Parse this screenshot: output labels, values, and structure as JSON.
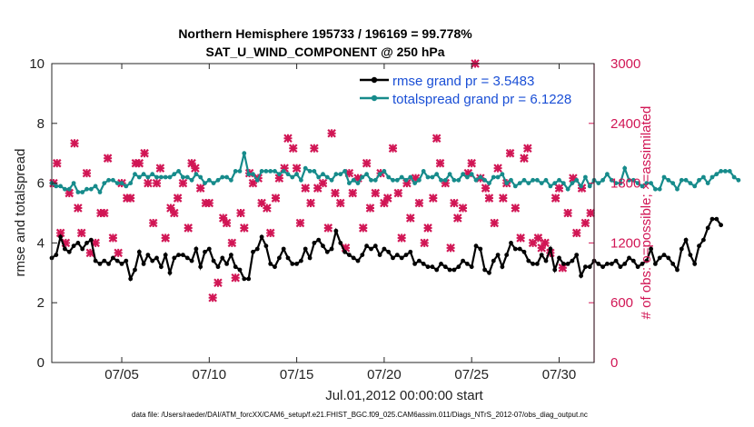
{
  "chart_data": {
    "type": "line",
    "title": "Northern Hemisphere 195733 / 196169 = 99.778%",
    "subtitle": "SAT_U_WIND_COMPONENT @ 250 hPa",
    "xlabel": "Jul.01,2012 00:00:00 start",
    "ylabel": "rmse and totalspread",
    "ylabel_right": "# of obs: o=possible; ×=assimilated",
    "xlim": [
      1,
      32
    ],
    "ylim": [
      0,
      10
    ],
    "ylim_right": [
      0,
      3000
    ],
    "x_ticks": [
      5,
      10,
      15,
      20,
      25,
      30
    ],
    "x_tick_labels": [
      "07/05",
      "07/10",
      "07/15",
      "07/20",
      "07/25",
      "07/30"
    ],
    "y_ticks": [
      0,
      2,
      4,
      6,
      8,
      10
    ],
    "y_tick_labels": [
      "0",
      "2",
      "4",
      "6",
      "8",
      "10"
    ],
    "y_ticks_right": [
      0,
      600,
      1200,
      1800,
      2400,
      3000
    ],
    "y_tick_labels_right": [
      "0",
      "600",
      "1200",
      "1800",
      "2400",
      "3000"
    ],
    "legend_position": "top-right",
    "series": [
      {
        "name": "rmse grand pr = 3.5483",
        "color": "#000000",
        "step": 0.25,
        "start": 1.0,
        "values": [
          3.5,
          3.6,
          4.2,
          3.8,
          3.7,
          3.9,
          4.0,
          3.8,
          4.0,
          4.1,
          3.4,
          3.3,
          3.4,
          3.3,
          3.5,
          3.4,
          3.3,
          3.4,
          2.8,
          3.1,
          3.7,
          3.3,
          3.6,
          3.4,
          3.5,
          3.2,
          3.6,
          3.0,
          3.5,
          3.6,
          3.6,
          3.5,
          3.4,
          3.8,
          3.2,
          3.7,
          3.8,
          3.4,
          3.2,
          3.5,
          3.3,
          3.6,
          3.2,
          3.1,
          2.8,
          2.8,
          3.7,
          3.8,
          4.2,
          3.9,
          3.3,
          3.2,
          3.5,
          3.8,
          3.5,
          3.3,
          3.3,
          3.4,
          3.8,
          3.5,
          4.0,
          4.1,
          3.9,
          3.7,
          3.8,
          4.4,
          4.0,
          3.7,
          3.6,
          3.5,
          3.4,
          3.6,
          3.9,
          3.8,
          3.9,
          3.6,
          3.8,
          3.7,
          3.5,
          3.6,
          3.5,
          3.6,
          3.7,
          3.3,
          3.4,
          3.3,
          3.2,
          3.2,
          3.1,
          3.3,
          3.2,
          3.1,
          3.1,
          3.2,
          3.4,
          3.3,
          3.2,
          3.9,
          3.8,
          3.1,
          3.0,
          3.4,
          3.6,
          3.2,
          3.6,
          4.0,
          3.8,
          3.8,
          3.7,
          3.4,
          3.3,
          3.3,
          3.6,
          3.4,
          3.8,
          3.1,
          3.5,
          3.3,
          3.3,
          3.4,
          3.6,
          2.9,
          3.2,
          3.2,
          3.4,
          3.3,
          3.2,
          3.3,
          3.3,
          3.4,
          3.2,
          3.3,
          3.5,
          3.4,
          3.2,
          3.3,
          3.4,
          3.8,
          3.3,
          3.5,
          3.6,
          3.5,
          3.3,
          3.1,
          3.8,
          4.1,
          3.6,
          3.3,
          3.9,
          4.1,
          4.5,
          4.8,
          4.8,
          4.6
        ]
      },
      {
        "name": "totalspread grand pr = 6.1228",
        "color": "#168b8b",
        "step": 0.25,
        "start": 1.0,
        "values": [
          6.0,
          5.9,
          5.9,
          5.8,
          5.8,
          6.0,
          5.7,
          5.7,
          5.8,
          5.8,
          5.9,
          5.7,
          6.0,
          6.1,
          6.1,
          6.0,
          6.0,
          5.9,
          6.0,
          6.3,
          6.2,
          6.3,
          6.2,
          6.3,
          6.2,
          6.2,
          6.2,
          6.2,
          6.3,
          6.4,
          6.2,
          6.2,
          6.1,
          6.3,
          6.2,
          6.0,
          6.1,
          6.0,
          6.1,
          6.2,
          6.2,
          6.1,
          6.4,
          6.4,
          7.0,
          6.3,
          6.3,
          6.1,
          6.4,
          6.4,
          6.4,
          6.4,
          6.3,
          6.4,
          6.3,
          6.2,
          6.3,
          6.1,
          6.5,
          6.4,
          6.4,
          6.2,
          6.3,
          6.2,
          6.1,
          6.3,
          6.3,
          6.4,
          6.0,
          6.1,
          6.0,
          6.2,
          6.3,
          6.1,
          6.1,
          6.3,
          6.4,
          6.2,
          6.1,
          6.1,
          6.2,
          6.1,
          6.2,
          6.0,
          6.1,
          6.4,
          6.2,
          6.2,
          6.3,
          6.1,
          6.1,
          6.3,
          6.1,
          6.1,
          6.3,
          6.2,
          6.3,
          6.1,
          6.2,
          6.1,
          6.0,
          6.2,
          6.2,
          6.3,
          6.0,
          6.1,
          5.9,
          6.0,
          6.1,
          6.0,
          6.1,
          6.1,
          6.0,
          6.1,
          5.9,
          6.0,
          6.1,
          6.0,
          5.8,
          6.0,
          6.1,
          5.9,
          6.2,
          5.9,
          6.1,
          6.0,
          6.1,
          6.3,
          6.1,
          6.0,
          6.0,
          6.5,
          6.1,
          6.1,
          6.0,
          5.9,
          6.0,
          6.0,
          5.8,
          5.8,
          6.2,
          6.1,
          6.0,
          5.8,
          6.1,
          6.1,
          6.0,
          5.9,
          6.1,
          6.2,
          6.0,
          6.2,
          6.3,
          6.4,
          6.4,
          6.4,
          6.2,
          6.1
        ]
      },
      {
        "name": "# of obs assimilated",
        "color": "#d11655",
        "axis": "right",
        "points": [
          [
            1.1,
            1800
          ],
          [
            1.3,
            2000
          ],
          [
            1.5,
            1300
          ],
          [
            1.8,
            1200
          ],
          [
            2.0,
            1700
          ],
          [
            2.3,
            2200
          ],
          [
            2.5,
            1550
          ],
          [
            2.7,
            1300
          ],
          [
            3.0,
            1900
          ],
          [
            3.2,
            1100
          ],
          [
            3.5,
            1200
          ],
          [
            3.8,
            1500
          ],
          [
            4.0,
            1500
          ],
          [
            4.2,
            2050
          ],
          [
            4.5,
            1250
          ],
          [
            4.8,
            1100
          ],
          [
            5.0,
            1800
          ],
          [
            5.3,
            1650
          ],
          [
            5.5,
            1650
          ],
          [
            5.8,
            2000
          ],
          [
            6.0,
            2000
          ],
          [
            6.3,
            2100
          ],
          [
            6.5,
            1800
          ],
          [
            6.8,
            1400
          ],
          [
            7.0,
            1800
          ],
          [
            7.2,
            1950
          ],
          [
            7.5,
            1250
          ],
          [
            7.8,
            1550
          ],
          [
            8.0,
            1500
          ],
          [
            8.2,
            1650
          ],
          [
            8.5,
            1800
          ],
          [
            8.8,
            1350
          ],
          [
            9.0,
            2000
          ],
          [
            9.2,
            1950
          ],
          [
            9.5,
            1750
          ],
          [
            9.8,
            1600
          ],
          [
            10.0,
            1600
          ],
          [
            10.2,
            650
          ],
          [
            10.5,
            800
          ],
          [
            10.8,
            1450
          ],
          [
            11.0,
            1400
          ],
          [
            11.3,
            1200
          ],
          [
            11.5,
            850
          ],
          [
            11.8,
            1500
          ],
          [
            12.0,
            1350
          ],
          [
            12.3,
            1900
          ],
          [
            12.5,
            1800
          ],
          [
            12.8,
            1850
          ],
          [
            13.0,
            1600
          ],
          [
            13.3,
            1550
          ],
          [
            13.5,
            1300
          ],
          [
            13.8,
            1650
          ],
          [
            14.0,
            1850
          ],
          [
            14.3,
            1950
          ],
          [
            14.5,
            2250
          ],
          [
            14.8,
            2150
          ],
          [
            15.0,
            1950
          ],
          [
            15.2,
            1400
          ],
          [
            15.5,
            1750
          ],
          [
            15.8,
            1600
          ],
          [
            16.0,
            2150
          ],
          [
            16.2,
            1750
          ],
          [
            16.5,
            1800
          ],
          [
            16.8,
            1350
          ],
          [
            17.0,
            2300
          ],
          [
            17.2,
            1700
          ],
          [
            17.5,
            1600
          ],
          [
            17.8,
            1150
          ],
          [
            18.0,
            1900
          ],
          [
            18.2,
            1700
          ],
          [
            18.5,
            1850
          ],
          [
            18.8,
            1350
          ],
          [
            19.0,
            2000
          ],
          [
            19.2,
            1550
          ],
          [
            19.5,
            1700
          ],
          [
            19.8,
            1900
          ],
          [
            20.0,
            1600
          ],
          [
            20.2,
            1650
          ],
          [
            20.5,
            2150
          ],
          [
            20.8,
            1700
          ],
          [
            21.0,
            1250
          ],
          [
            21.3,
            1800
          ],
          [
            21.5,
            1450
          ],
          [
            21.8,
            1850
          ],
          [
            22.0,
            1600
          ],
          [
            22.3,
            1200
          ],
          [
            22.5,
            1350
          ],
          [
            22.8,
            1650
          ],
          [
            23.0,
            2250
          ],
          [
            23.2,
            2000
          ],
          [
            23.5,
            1800
          ],
          [
            23.8,
            1150
          ],
          [
            24.0,
            1600
          ],
          [
            24.2,
            1450
          ],
          [
            24.5,
            1550
          ],
          [
            24.8,
            1900
          ],
          [
            25.0,
            2000
          ],
          [
            25.2,
            3000
          ],
          [
            25.5,
            1850
          ],
          [
            25.8,
            1750
          ],
          [
            26.0,
            1650
          ],
          [
            26.3,
            1400
          ],
          [
            26.5,
            1950
          ],
          [
            26.8,
            1650
          ],
          [
            27.0,
            1800
          ],
          [
            27.2,
            2100
          ],
          [
            27.5,
            1550
          ],
          [
            27.8,
            1250
          ],
          [
            28.0,
            2050
          ],
          [
            28.2,
            2150
          ],
          [
            28.5,
            1200
          ],
          [
            28.8,
            1250
          ],
          [
            29.0,
            1150
          ],
          [
            29.2,
            1200
          ],
          [
            29.5,
            1100
          ],
          [
            29.8,
            1650
          ],
          [
            30.0,
            1750
          ],
          [
            30.2,
            950
          ],
          [
            30.5,
            1500
          ],
          [
            30.8,
            1850
          ],
          [
            31.0,
            1300
          ],
          [
            31.3,
            1750
          ],
          [
            31.5,
            1400
          ],
          [
            31.8,
            1500
          ]
        ]
      }
    ]
  },
  "footer": "data file: /Users/raeder/DAI/ATM_forcXX/CAM6_setup/f.e21.FHIST_BGC.f09_025.CAM6assim.011/Diags_NTrS_2012-07/obs_diag_output.nc"
}
